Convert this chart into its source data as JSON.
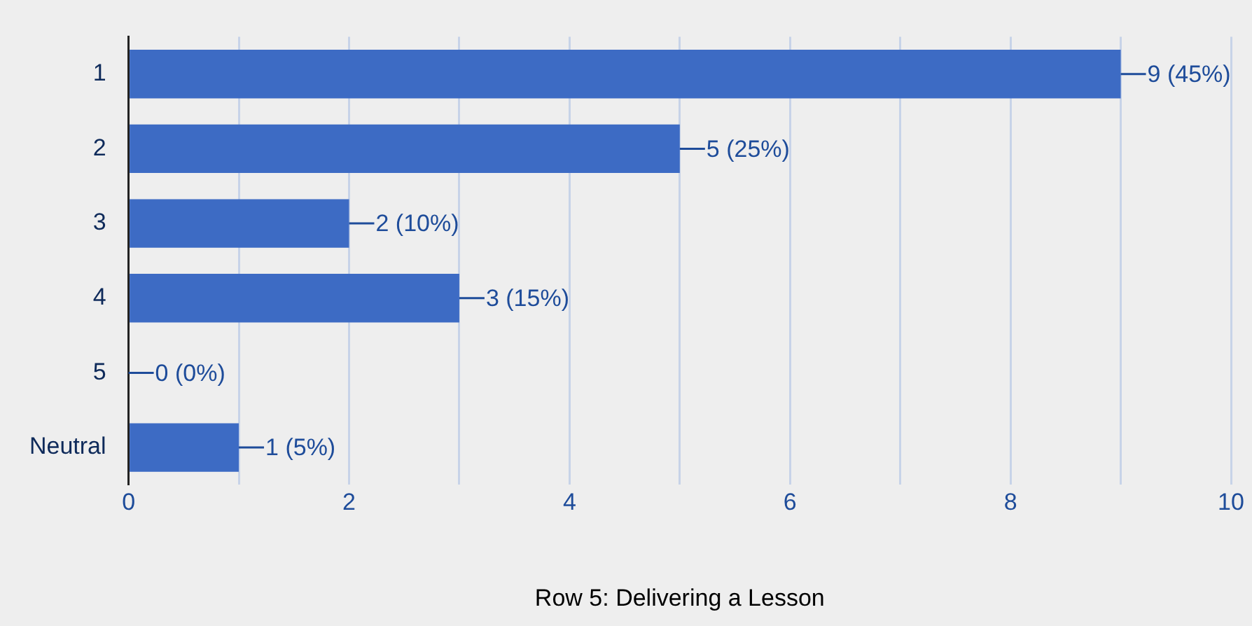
{
  "chart_data": {
    "type": "bar",
    "orientation": "horizontal",
    "xlabel": "Row 5: Delivering a Lesson",
    "categories": [
      "1",
      "2",
      "3",
      "4",
      "5",
      "Neutral"
    ],
    "values": [
      9,
      5,
      2,
      3,
      0,
      1
    ],
    "value_labels": [
      "9 (45%)",
      "5 (25%)",
      "2 (10%)",
      "3 (15%)",
      "0 (0%)",
      "1 (5%)"
    ],
    "color": "#3d6bc4",
    "xlim": [
      0,
      10
    ],
    "xticks": [
      0,
      {
        "value": 1,
        "label": null
      },
      2,
      {
        "value": 3,
        "label": null
      },
      4,
      {
        "value": 5,
        "label": null
      },
      6,
      {
        "value": 7,
        "label": null
      },
      8,
      {
        "value": 9,
        "label": null
      },
      10
    ],
    "grid": "x",
    "legend": false
  }
}
